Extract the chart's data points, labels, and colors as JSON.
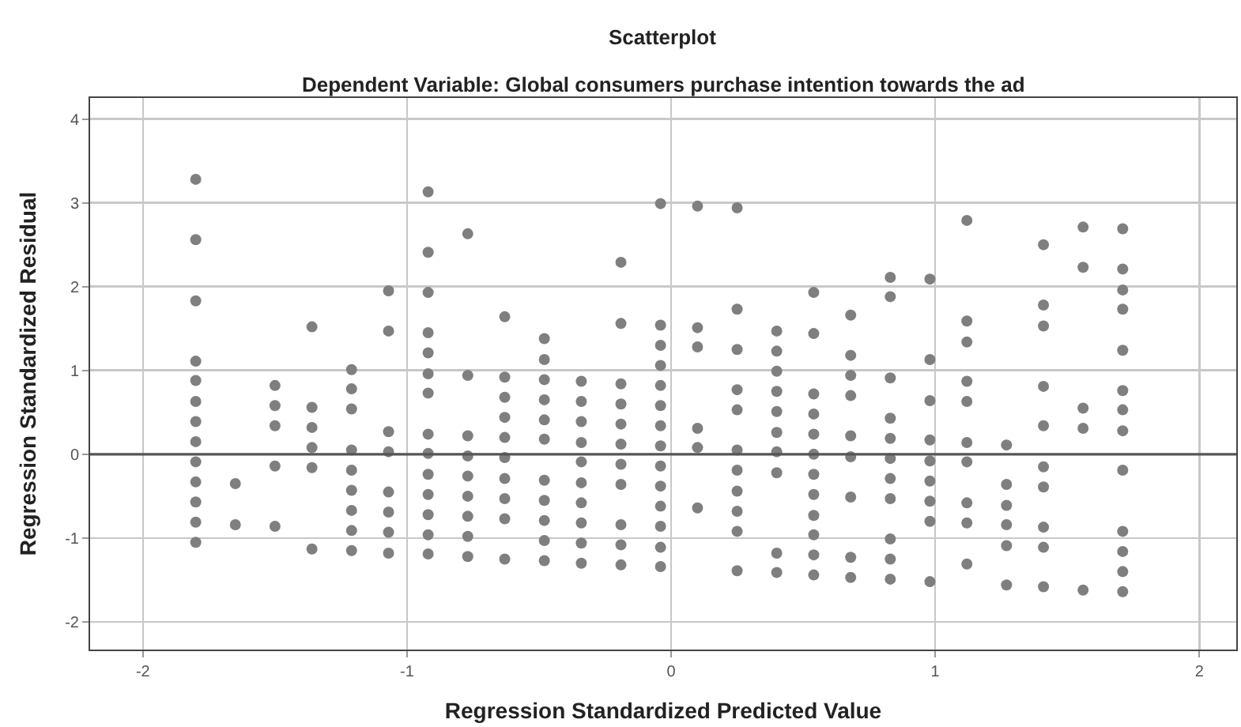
{
  "chart_data": {
    "type": "scatter",
    "title": "Scatterplot",
    "subtitle": "Dependent Variable: Global consumers purchase intention towards the ad",
    "xlabel": "Regression Standardized Predicted Value",
    "ylabel": "Regression Standardized Residual",
    "xlim": [
      -2.2,
      2.14
    ],
    "ylim": [
      -2.33,
      4.25
    ],
    "xticks": [
      -2,
      -1,
      0,
      1,
      2
    ],
    "yticks": [
      -2,
      -1,
      0,
      1,
      2,
      3,
      4
    ],
    "grid": true,
    "marker": "circle",
    "ref_lines": [
      {
        "axis": "y",
        "value": 0,
        "color": "#555555"
      }
    ],
    "series": [
      {
        "color": "#7f7f7f",
        "x": [
          -1.8,
          -1.8,
          -1.8,
          -1.8,
          -1.8,
          -1.8,
          -1.8,
          -1.8,
          -1.8,
          -1.8,
          -1.8,
          -1.8,
          -1.8,
          -1.65,
          -1.65,
          -1.5,
          -1.5,
          -1.5,
          -1.5,
          -1.5,
          -1.36,
          -1.36,
          -1.36,
          -1.36,
          -1.36,
          -1.36,
          -1.21,
          -1.21,
          -1.21,
          -1.21,
          -1.21,
          -1.21,
          -1.21,
          -1.21,
          -1.21,
          -1.07,
          -1.07,
          -1.07,
          -1.07,
          -1.07,
          -1.07,
          -1.07,
          -1.07,
          -0.92,
          -0.92,
          -0.92,
          -0.92,
          -0.92,
          -0.92,
          -0.92,
          -0.92,
          -0.92,
          -0.92,
          -0.92,
          -0.92,
          -0.92,
          -0.92,
          -0.77,
          -0.77,
          -0.77,
          -0.77,
          -0.77,
          -0.77,
          -0.77,
          -0.77,
          -0.77,
          -0.63,
          -0.63,
          -0.63,
          -0.63,
          -0.63,
          -0.63,
          -0.63,
          -0.63,
          -0.63,
          -0.63,
          -0.48,
          -0.48,
          -0.48,
          -0.48,
          -0.48,
          -0.48,
          -0.48,
          -0.48,
          -0.48,
          -0.48,
          -0.48,
          -0.34,
          -0.34,
          -0.34,
          -0.34,
          -0.34,
          -0.34,
          -0.34,
          -0.34,
          -0.34,
          -0.34,
          -0.19,
          -0.19,
          -0.19,
          -0.19,
          -0.19,
          -0.19,
          -0.19,
          -0.19,
          -0.19,
          -0.19,
          -0.19,
          -0.04,
          -0.04,
          -0.04,
          -0.04,
          -0.04,
          -0.04,
          -0.04,
          -0.04,
          -0.04,
          -0.04,
          -0.04,
          -0.04,
          -0.04,
          -0.04,
          0.1,
          0.1,
          0.1,
          0.1,
          0.1,
          0.1,
          0.25,
          0.25,
          0.25,
          0.25,
          0.25,
          0.25,
          0.25,
          0.25,
          0.25,
          0.25,
          0.25,
          0.4,
          0.4,
          0.4,
          0.4,
          0.4,
          0.4,
          0.4,
          0.4,
          0.4,
          0.4,
          0.54,
          0.54,
          0.54,
          0.54,
          0.54,
          0.54,
          0.54,
          0.54,
          0.54,
          0.54,
          0.54,
          0.54,
          0.68,
          0.68,
          0.68,
          0.68,
          0.68,
          0.68,
          0.68,
          0.68,
          0.68,
          0.83,
          0.83,
          0.83,
          0.83,
          0.83,
          0.83,
          0.83,
          0.83,
          0.83,
          0.83,
          0.83,
          0.98,
          0.98,
          0.98,
          0.98,
          0.98,
          0.98,
          0.98,
          0.98,
          0.98,
          1.12,
          1.12,
          1.12,
          1.12,
          1.12,
          1.12,
          1.12,
          1.12,
          1.12,
          1.12,
          1.27,
          1.27,
          1.27,
          1.27,
          1.27,
          1.27,
          1.41,
          1.41,
          1.41,
          1.41,
          1.41,
          1.41,
          1.41,
          1.41,
          1.41,
          1.41,
          1.56,
          1.56,
          1.56,
          1.56,
          1.56,
          1.71,
          1.71,
          1.71,
          1.71,
          1.71,
          1.71,
          1.71,
          1.71,
          1.71,
          1.71,
          1.71,
          1.71,
          1.71
        ],
        "values": [
          3.28,
          2.56,
          1.83,
          1.11,
          0.88,
          0.63,
          0.39,
          0.15,
          -0.09,
          -0.33,
          -0.57,
          -0.81,
          -1.05,
          -0.35,
          -0.84,
          0.82,
          0.58,
          0.34,
          -0.14,
          -0.86,
          1.52,
          0.56,
          0.32,
          0.08,
          -0.16,
          -1.13,
          1.01,
          0.78,
          0.54,
          0.05,
          -0.19,
          -0.43,
          -0.67,
          -0.91,
          -1.15,
          1.95,
          1.47,
          0.27,
          0.03,
          -0.45,
          -0.69,
          -0.93,
          -1.18,
          3.13,
          2.41,
          1.93,
          1.45,
          1.21,
          0.96,
          0.73,
          0.24,
          0.01,
          -0.24,
          -0.48,
          -0.72,
          -0.96,
          -1.19,
          2.63,
          0.94,
          0.22,
          -0.02,
          -0.26,
          -0.5,
          -0.74,
          -0.98,
          -1.22,
          1.64,
          0.92,
          0.68,
          0.44,
          0.2,
          -0.04,
          -0.29,
          -0.53,
          -0.77,
          -1.25,
          1.38,
          1.13,
          0.89,
          0.65,
          0.41,
          0.18,
          -0.31,
          -0.55,
          -0.79,
          -1.03,
          -1.27,
          0.87,
          0.63,
          0.39,
          0.14,
          -0.09,
          -0.34,
          -0.58,
          -0.82,
          -1.06,
          -1.3,
          2.29,
          1.56,
          0.84,
          0.6,
          0.36,
          0.12,
          -0.12,
          -0.36,
          -0.84,
          -1.08,
          -1.32,
          2.99,
          1.54,
          1.3,
          1.06,
          0.82,
          0.58,
          0.34,
          0.1,
          -0.14,
          -0.38,
          -0.62,
          -0.86,
          -1.11,
          -1.34,
          2.96,
          1.51,
          1.28,
          0.31,
          0.08,
          -0.64,
          2.94,
          1.73,
          1.25,
          0.77,
          0.53,
          0.05,
          -0.19,
          -0.44,
          -0.68,
          -0.92,
          -1.39,
          1.47,
          1.23,
          0.99,
          0.75,
          0.51,
          0.26,
          0.03,
          -0.22,
          -1.18,
          -1.41,
          1.93,
          1.44,
          0.72,
          0.48,
          0.24,
          0.0,
          -0.24,
          -0.48,
          -0.73,
          -0.96,
          -1.2,
          -1.44,
          1.66,
          1.18,
          0.94,
          0.7,
          0.22,
          -0.03,
          -0.51,
          -1.23,
          -1.47,
          2.11,
          1.88,
          0.91,
          0.43,
          0.19,
          -0.05,
          -0.29,
          -0.53,
          -1.01,
          -1.25,
          -1.49,
          2.09,
          1.13,
          0.64,
          0.17,
          -0.08,
          -0.32,
          -0.56,
          -0.8,
          -1.52,
          2.79,
          1.59,
          1.34,
          0.87,
          0.63,
          0.14,
          -0.09,
          -0.58,
          -0.82,
          -1.31,
          0.11,
          -0.36,
          -0.61,
          -0.84,
          -1.09,
          -1.56,
          2.5,
          1.78,
          1.53,
          0.81,
          0.34,
          -0.15,
          -0.39,
          -0.87,
          -1.11,
          -1.58,
          2.71,
          2.23,
          0.55,
          0.31,
          -1.62,
          2.69,
          2.21,
          1.96,
          1.73,
          1.24,
          0.76,
          0.53,
          0.28,
          -0.19,
          -0.92,
          -1.16,
          -1.4,
          -1.64
        ]
      }
    ]
  }
}
